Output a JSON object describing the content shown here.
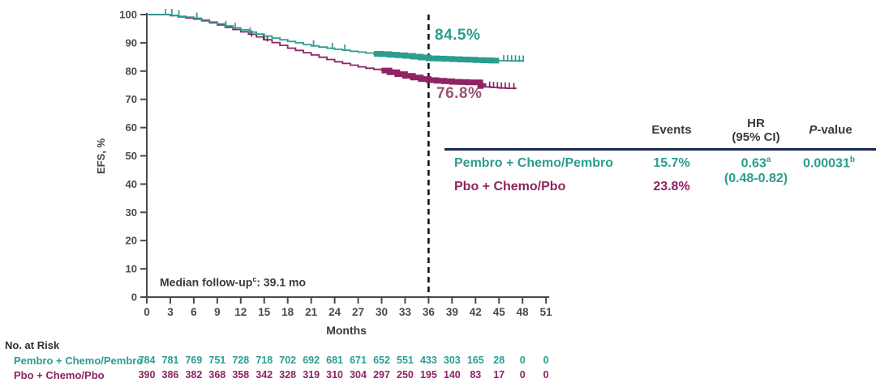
{
  "theme": {
    "teal": "#2a9d8f",
    "maroon": "#8e2463",
    "maroon_light": "#9c5274",
    "navy": "#1b2a4a",
    "axis_ink": "#4a4a4a"
  },
  "chart_data": {
    "type": "line",
    "subtype": "kaplan-meier-step",
    "title": "",
    "xlabel": "Months",
    "ylabel": "EFS, %",
    "xlim": [
      0,
      51
    ],
    "ylim": [
      0,
      100
    ],
    "xticks": [
      0,
      3,
      6,
      9,
      12,
      15,
      18,
      21,
      24,
      27,
      30,
      33,
      36,
      39,
      42,
      45,
      48,
      51
    ],
    "yticks": [
      0,
      10,
      20,
      30,
      40,
      50,
      60,
      70,
      80,
      90,
      100
    ],
    "reference_line_x": 36,
    "grid": false,
    "series": [
      {
        "name": "Pembro + Chemo/Pembro",
        "color": "#2a9d8f",
        "rate_at_36mo": "84.5%",
        "points": [
          [
            0,
            100
          ],
          [
            1.8,
            100
          ],
          [
            3,
            99.7
          ],
          [
            4,
            99.4
          ],
          [
            5,
            99.1
          ],
          [
            6,
            98.7
          ],
          [
            7,
            98.1
          ],
          [
            8,
            97.4
          ],
          [
            9,
            96.7
          ],
          [
            10,
            96
          ],
          [
            11,
            95.3
          ],
          [
            12,
            94.6
          ],
          [
            13,
            93.8
          ],
          [
            14,
            93.1
          ],
          [
            15,
            92.4
          ],
          [
            16,
            91.7
          ],
          [
            17,
            91.1
          ],
          [
            18,
            90.5
          ],
          [
            19,
            90
          ],
          [
            20,
            89.4
          ],
          [
            21,
            88.9
          ],
          [
            22,
            88.5
          ],
          [
            23,
            88.1
          ],
          [
            24,
            87.7
          ],
          [
            25,
            87.4
          ],
          [
            26,
            87
          ],
          [
            27,
            86.7
          ],
          [
            28,
            86.4
          ],
          [
            29,
            86.1
          ],
          [
            30,
            86
          ],
          [
            31,
            85.8
          ],
          [
            32,
            85.6
          ],
          [
            33,
            85.4
          ],
          [
            34,
            85.1
          ],
          [
            35,
            84.8
          ],
          [
            36,
            84.5
          ],
          [
            37,
            84.4
          ],
          [
            38,
            84.3
          ],
          [
            39,
            84.2
          ],
          [
            40,
            84.1
          ],
          [
            41,
            84
          ],
          [
            42,
            83.9
          ],
          [
            43,
            83.8
          ],
          [
            44,
            83.7
          ],
          [
            45,
            83.7
          ],
          [
            46,
            83.6
          ],
          [
            47,
            83.6
          ],
          [
            48.1,
            83.5
          ]
        ],
        "censor_band": [
          29,
          45.2
        ],
        "censor_ticks": [
          [
            2.4,
            100
          ],
          [
            3.2,
            100
          ],
          [
            4.1,
            99.6
          ],
          [
            6.4,
            98.7
          ],
          [
            10.1,
            95.8
          ],
          [
            11.3,
            95.1
          ],
          [
            13.2,
            93.5
          ],
          [
            21.3,
            88.9
          ],
          [
            23.7,
            88
          ],
          [
            25.3,
            87.4
          ],
          [
            45.6,
            83.7
          ],
          [
            46.1,
            83.7
          ],
          [
            46.6,
            83.6
          ],
          [
            47.1,
            83.6
          ],
          [
            47.6,
            83.5
          ],
          [
            48.1,
            83.5
          ]
        ]
      },
      {
        "name": "Pbo + Chemo/Pbo",
        "color": "#8e2463",
        "rate_at_36mo": "76.8%",
        "points": [
          [
            0,
            100
          ],
          [
            1.8,
            100
          ],
          [
            3,
            99.6
          ],
          [
            4,
            99.2
          ],
          [
            5,
            98.8
          ],
          [
            6,
            98.4
          ],
          [
            7,
            97.8
          ],
          [
            8,
            97.1
          ],
          [
            9,
            96.3
          ],
          [
            10,
            95.5
          ],
          [
            11,
            94.7
          ],
          [
            12,
            93.9
          ],
          [
            13,
            93
          ],
          [
            14,
            92.1
          ],
          [
            15,
            91.1
          ],
          [
            16,
            90.1
          ],
          [
            17,
            89.1
          ],
          [
            18,
            88.1
          ],
          [
            19,
            87.3
          ],
          [
            20,
            86.5
          ],
          [
            21,
            85.7
          ],
          [
            22,
            84.9
          ],
          [
            23,
            84.1
          ],
          [
            24,
            83.3
          ],
          [
            25,
            82.7
          ],
          [
            26,
            82.1
          ],
          [
            27,
            81.5
          ],
          [
            28,
            81
          ],
          [
            29,
            80.6
          ],
          [
            30,
            80.2
          ],
          [
            31,
            79.6
          ],
          [
            32,
            78.9
          ],
          [
            33,
            78.3
          ],
          [
            34,
            77.7
          ],
          [
            35,
            77.2
          ],
          [
            36,
            76.8
          ],
          [
            37,
            76.6
          ],
          [
            38,
            76.4
          ],
          [
            39,
            76.2
          ],
          [
            40,
            76.1
          ],
          [
            41,
            76
          ],
          [
            42,
            76
          ],
          [
            42.6,
            74.7
          ],
          [
            43,
            74.4
          ],
          [
            44,
            74.2
          ],
          [
            45,
            74
          ],
          [
            46,
            73.9
          ],
          [
            47.2,
            73.8
          ]
        ],
        "censor_band": [
          30,
          43.4
        ],
        "censor_ticks": [
          [
            13.4,
            92.4
          ],
          [
            14.9,
            91.2
          ],
          [
            15.4,
            90.7
          ],
          [
            43.8,
            74.3
          ],
          [
            44.3,
            74.2
          ],
          [
            44.8,
            74.1
          ],
          [
            45.3,
            74
          ],
          [
            45.8,
            74
          ],
          [
            46.3,
            73.9
          ],
          [
            46.9,
            73.8
          ]
        ]
      }
    ],
    "annotations": {
      "pembro_rate_label": "84.5%",
      "pbo_rate_label": "76.8%",
      "median_followup": "Median follow-up: 39.1 mo"
    },
    "legend_position": "table-right"
  },
  "median_note": {
    "prefix": "Median follow-up",
    "sup": "c",
    "suffix": ": 39.1 mo"
  },
  "stats_table": {
    "headers": {
      "events": "Events",
      "hr_line1": "HR",
      "hr_line2": "(95% CI)",
      "p_italic": "P",
      "p_rest": "-value"
    },
    "rows": [
      {
        "label": "Pembro + Chemo/Pembro",
        "events": "15.7%"
      },
      {
        "label": "Pbo + Chemo/Pbo",
        "events": "23.8%"
      }
    ],
    "hr_value": "0.63",
    "hr_sup": "a",
    "hr_ci": "(0.48-0.82)",
    "p_value": "0.00031",
    "p_sup": "b"
  },
  "risk_table": {
    "title": "No. at Risk",
    "months": [
      0,
      3,
      6,
      9,
      12,
      15,
      18,
      21,
      24,
      27,
      30,
      33,
      36,
      39,
      42,
      45,
      48,
      51
    ],
    "rows": [
      {
        "label": "Pembro + Chemo/Pembro",
        "values": [
          784,
          781,
          769,
          751,
          728,
          718,
          702,
          692,
          681,
          671,
          652,
          551,
          433,
          303,
          165,
          28,
          0,
          0
        ]
      },
      {
        "label": "Pbo + Chemo/Pbo",
        "values": [
          390,
          386,
          382,
          368,
          358,
          342,
          328,
          319,
          310,
          304,
          297,
          250,
          195,
          140,
          83,
          17,
          0,
          0
        ]
      }
    ]
  }
}
